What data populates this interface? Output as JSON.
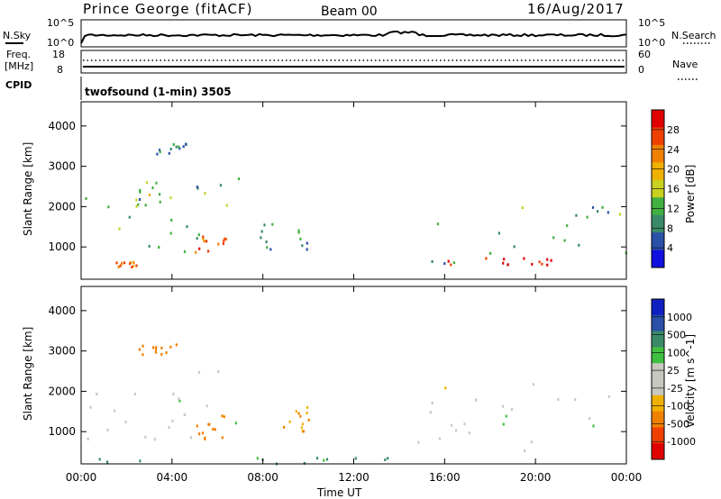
{
  "header": {
    "station": "Prince George (fitACF)",
    "beam": "Beam 00",
    "date": "16/Aug/2017"
  },
  "params": {
    "nsky_label": "N.Sky",
    "nsky_top": "10^5",
    "nsky_bottom": "10^0",
    "nsearch_label": "N.Search",
    "nsearch_top": "10^5",
    "nsearch_bottom": "10^0",
    "freq_label": "Freq.",
    "freq_unit": "[MHz]",
    "freq_top": "18",
    "freq_bottom": "8",
    "nave_label": "Nave",
    "nave_top": "60",
    "nave_bottom": "0",
    "cpid_label": "CPID",
    "cpid_text": "twofsound (1-min) 3505"
  },
  "colors": {
    "power_scale": [
      "#1010e0",
      "#2a50a8",
      "#3a8a6a",
      "#40b040",
      "#c8d020",
      "#f0b000",
      "#f08000",
      "#f04000",
      "#e00000"
    ],
    "velocity_scale": [
      "#e00000",
      "#f04000",
      "#f08000",
      "#f0b000",
      "#c8c8c0",
      "#c8c8c0",
      "#40c040",
      "#3a8a6a",
      "#2a50a8",
      "#1020c0"
    ]
  },
  "chart_data": [
    {
      "type": "heatmap",
      "panel": "power",
      "ylabel": "Slant Range [km]",
      "yticks": [
        "1000",
        "2000",
        "3000",
        "4000"
      ],
      "ylim": [
        200,
        4600
      ],
      "xlim": [
        "00:00",
        "24:00"
      ],
      "colorbar": {
        "label": "Power [dB]",
        "ticks": [
          "4",
          "8",
          "12",
          "16",
          "20",
          "24",
          "28"
        ],
        "range": [
          0,
          30
        ]
      },
      "echo_regions": [
        {
          "t0": 0.0,
          "t1": 7.0,
          "r0": 600,
          "r1": 2700,
          "power_db": 10
        },
        {
          "t0": 2.3,
          "t1": 3.5,
          "r0": 2000,
          "r1": 2600,
          "power_db": 14
        },
        {
          "t0": 3.3,
          "t1": 4.8,
          "r0": 3300,
          "r1": 3550,
          "power_db": 6
        },
        {
          "t0": 5.0,
          "t1": 6.4,
          "r0": 800,
          "r1": 1300,
          "power_db": 24
        },
        {
          "t0": 1.5,
          "t1": 2.6,
          "r0": 500,
          "r1": 650,
          "power_db": 22
        },
        {
          "t0": 7.8,
          "t1": 10.0,
          "r0": 900,
          "r1": 1600,
          "power_db": 7
        },
        {
          "t0": 14.8,
          "t1": 24.0,
          "r0": 500,
          "r1": 2200,
          "power_db": 10
        },
        {
          "t0": 16.0,
          "t1": 21.5,
          "r0": 500,
          "r1": 750,
          "power_db": 28
        }
      ]
    },
    {
      "type": "heatmap",
      "panel": "velocity",
      "ylabel": "Slant Range [km]",
      "yticks": [
        "1000",
        "2000",
        "3000",
        "4000"
      ],
      "ylim": [
        200,
        4600
      ],
      "xlim": [
        "00:00",
        "24:00"
      ],
      "xticks": [
        "00:00",
        "04:00",
        "08:00",
        "12:00",
        "16:00",
        "20:00",
        "00:00"
      ],
      "xlabel": "Time UT",
      "colorbar": {
        "label": "Velocity [m s^-1]",
        "ticks": [
          "-1000",
          "-500",
          "-100",
          "-25",
          "25",
          "100",
          "500",
          "1000"
        ]
      },
      "echo_regions": [
        {
          "t0": 0.0,
          "t1": 7.0,
          "r0": 600,
          "r1": 2700,
          "velocity": 0
        },
        {
          "t0": 2.0,
          "t1": 4.2,
          "r0": 2900,
          "r1": 3200,
          "velocity": -150
        },
        {
          "t0": 5.0,
          "t1": 6.4,
          "r0": 800,
          "r1": 1400,
          "velocity": -300
        },
        {
          "t0": 8.8,
          "t1": 10.0,
          "r0": 1000,
          "r1": 1600,
          "velocity": -100
        },
        {
          "t0": 14.8,
          "t1": 24.0,
          "r0": 500,
          "r1": 2400,
          "velocity": 0
        },
        {
          "t0": 0.0,
          "t1": 14.0,
          "r0": 200,
          "r1": 350,
          "velocity": 120
        }
      ]
    }
  ]
}
